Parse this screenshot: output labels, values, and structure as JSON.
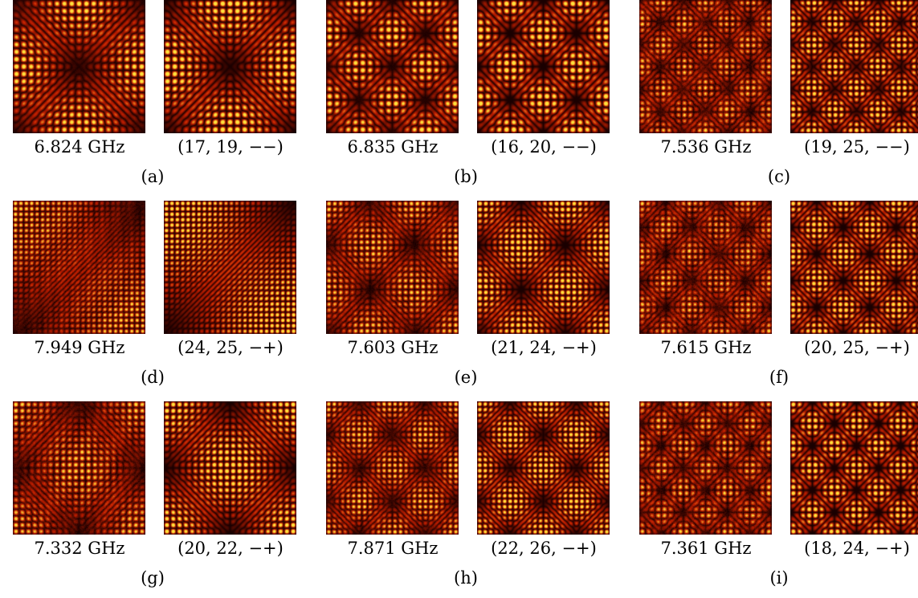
{
  "colors": {
    "dark": "#1a0000",
    "mid": "#c21e00",
    "bright": "#ffe23c"
  },
  "panels": [
    {
      "label": "(a)",
      "measured": "6.824 GHz",
      "mode": "(17, 19, −−)",
      "m": 17,
      "n": 19,
      "sym": "--",
      "noise": 0.15
    },
    {
      "label": "(b)",
      "measured": "6.835 GHz",
      "mode": "(16, 20, −−)",
      "m": 16,
      "n": 20,
      "sym": "--",
      "noise": 0.15
    },
    {
      "label": "(c)",
      "measured": "7.536 GHz",
      "mode": "(19, 25, −−)",
      "m": 19,
      "n": 25,
      "sym": "--",
      "noise": 0.45
    },
    {
      "label": "(d)",
      "measured": "7.949 GHz",
      "mode": "(24, 25, −+)",
      "m": 24,
      "n": 25,
      "sym": "-+",
      "noise": 0.35
    },
    {
      "label": "(e)",
      "measured": "7.603 GHz",
      "mode": "(21, 24, −+)",
      "m": 21,
      "n": 24,
      "sym": "-+",
      "noise": 0.35
    },
    {
      "label": "(f)",
      "measured": "7.615 GHz",
      "mode": "(20, 25, −+)",
      "m": 20,
      "n": 25,
      "sym": "-+",
      "noise": 0.5
    },
    {
      "label": "(g)",
      "measured": "7.332 GHz",
      "mode": "(20, 22, −+)",
      "m": 20,
      "n": 22,
      "sym": "-+",
      "noise": 0.4
    },
    {
      "label": "(h)",
      "measured": "7.871 GHz",
      "mode": "(22, 26, −+)",
      "m": 22,
      "n": 26,
      "sym": "-+",
      "noise": 0.3
    },
    {
      "label": "(i)",
      "measured": "7.361 GHz",
      "mode": "(18, 24, −+)",
      "m": 18,
      "n": 24,
      "sym": "-+",
      "noise": 0.45
    }
  ]
}
